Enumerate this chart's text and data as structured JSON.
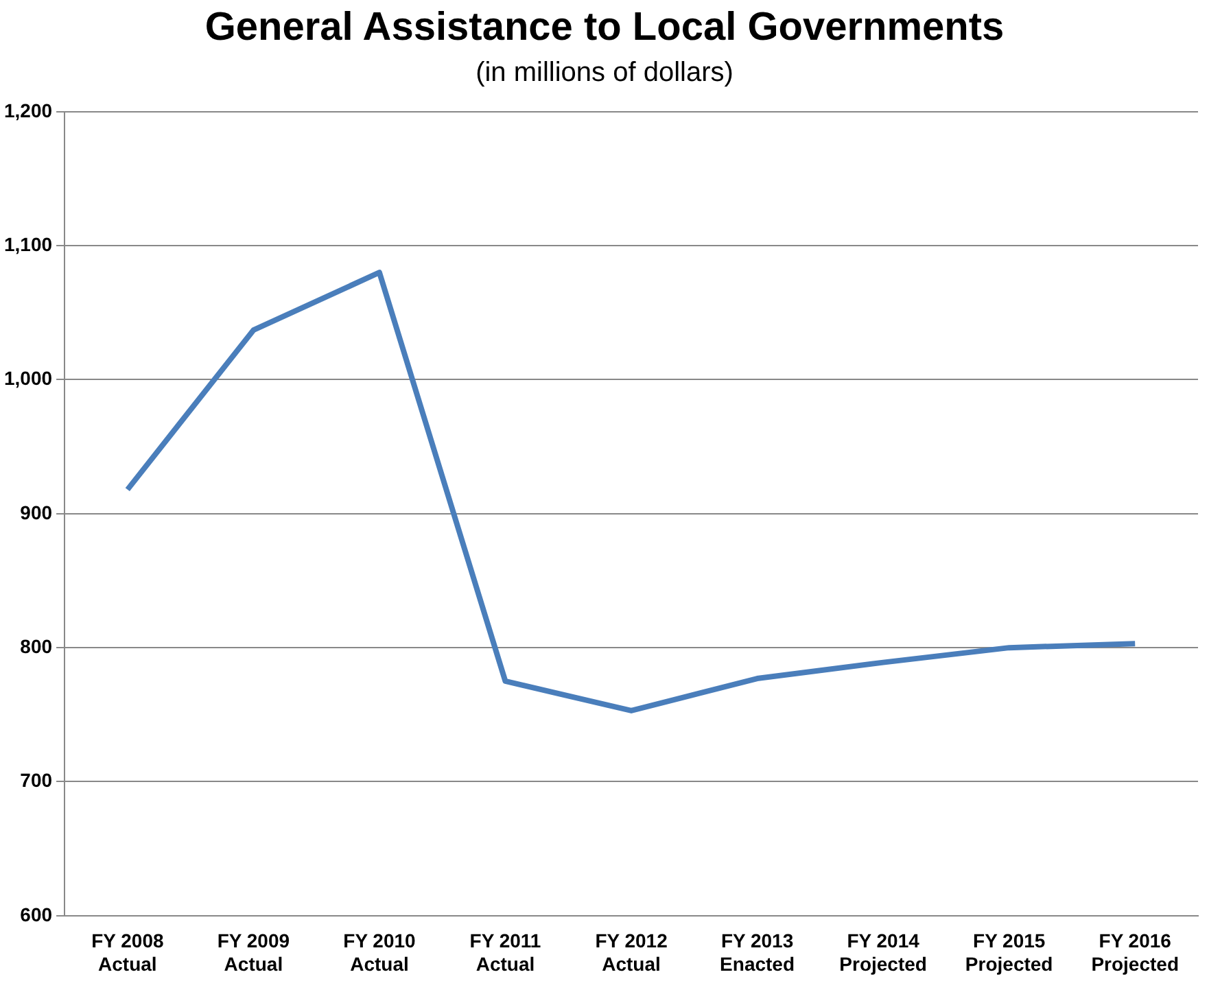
{
  "chart_data": {
    "type": "line",
    "title": "General Assistance to Local Governments",
    "subtitle": "(in millions of dollars)",
    "categories": [
      "FY 2008\nActual",
      "FY 2009\nActual",
      "FY 2010\nActual",
      "FY 2011\nActual",
      "FY 2012\nActual",
      "FY 2013\nEnacted",
      "FY 2014\nProjected",
      "FY 2015\nProjected",
      "FY 2016\nProjected"
    ],
    "series": [
      {
        "color": "#4a7ebb",
        "values": [
          918,
          1037,
          1080,
          775,
          753,
          777,
          789,
          800,
          803
        ]
      }
    ],
    "ylim": [
      600,
      1200
    ],
    "yticks": [
      600,
      700,
      800,
      900,
      {
        "value": 1000,
        "label": "1,000"
      },
      {
        "value": 1100,
        "label": "1,100"
      },
      {
        "value": 1200,
        "label": "1,200"
      }
    ],
    "grid": "y",
    "legend": false,
    "marker": "none",
    "line_style": "solid"
  }
}
